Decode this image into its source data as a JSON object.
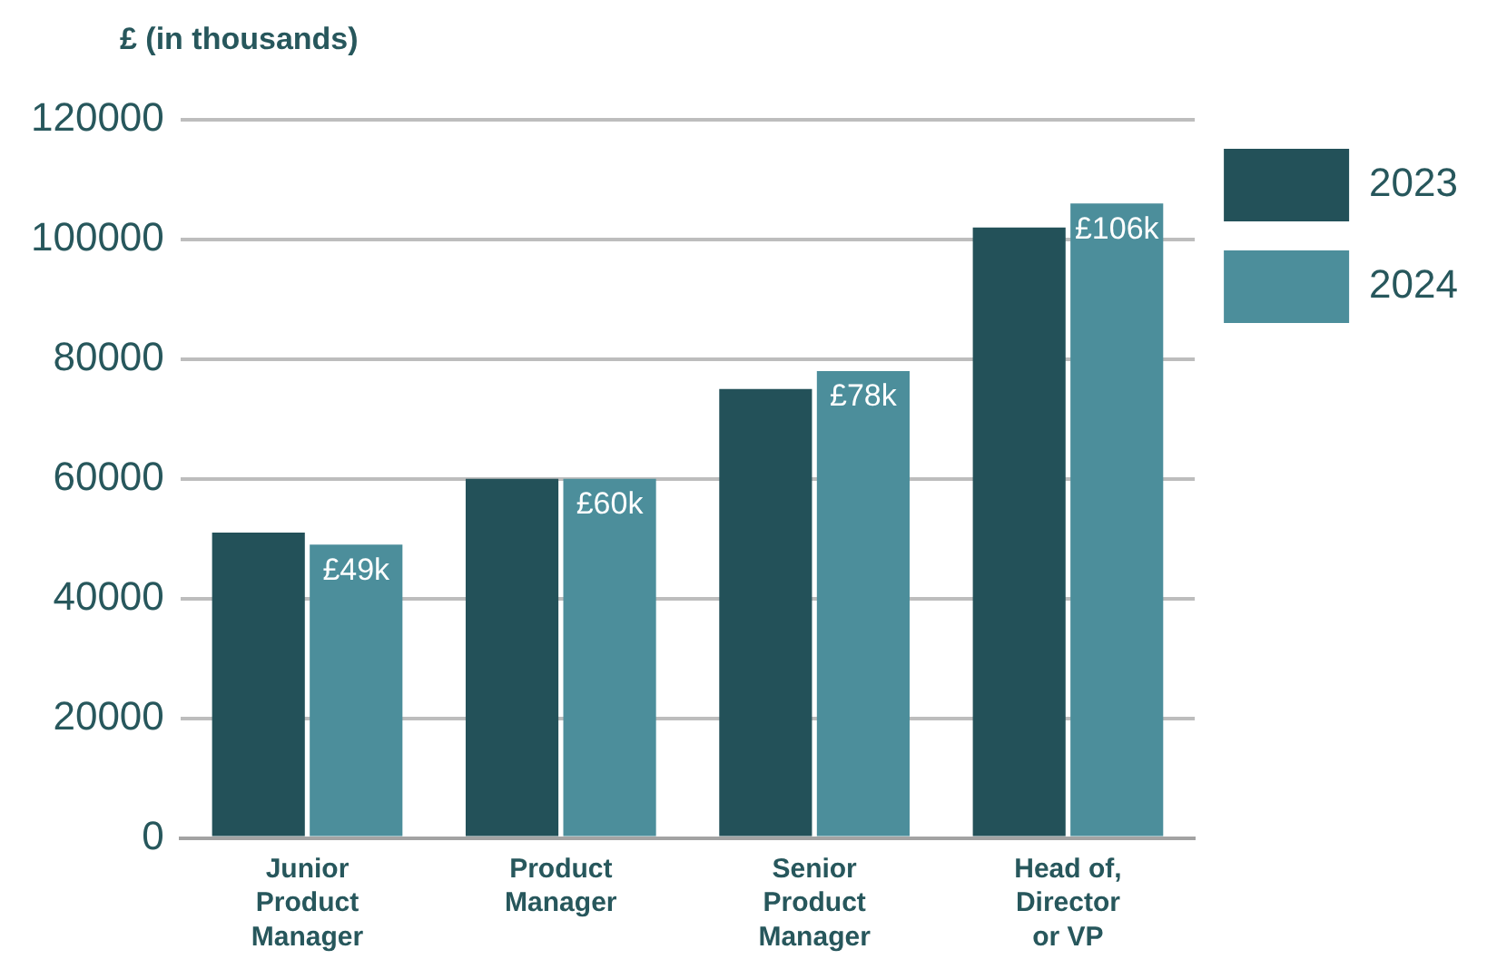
{
  "chart_data": {
    "type": "bar",
    "ylabel": "£ (in thousands)",
    "categories": [
      "Junior\nProduct\nManager",
      "Product\nManager",
      "Senior\nProduct\nManager",
      "Head of,\nDirector\nor VP"
    ],
    "series": [
      {
        "name": "2023",
        "color": "#235159",
        "values": [
          51000,
          60000,
          75000,
          102000
        ]
      },
      {
        "name": "2024",
        "color": "#4c8e9b",
        "values": [
          49000,
          60000,
          78000,
          106000
        ],
        "value_labels": [
          "£49k",
          "£60k",
          "£78k",
          "£106k"
        ]
      }
    ],
    "ylim": [
      0,
      120000
    ],
    "yticks": [
      0,
      20000,
      40000,
      60000,
      80000,
      100000,
      120000
    ],
    "grid": "y",
    "legend": "top right"
  }
}
